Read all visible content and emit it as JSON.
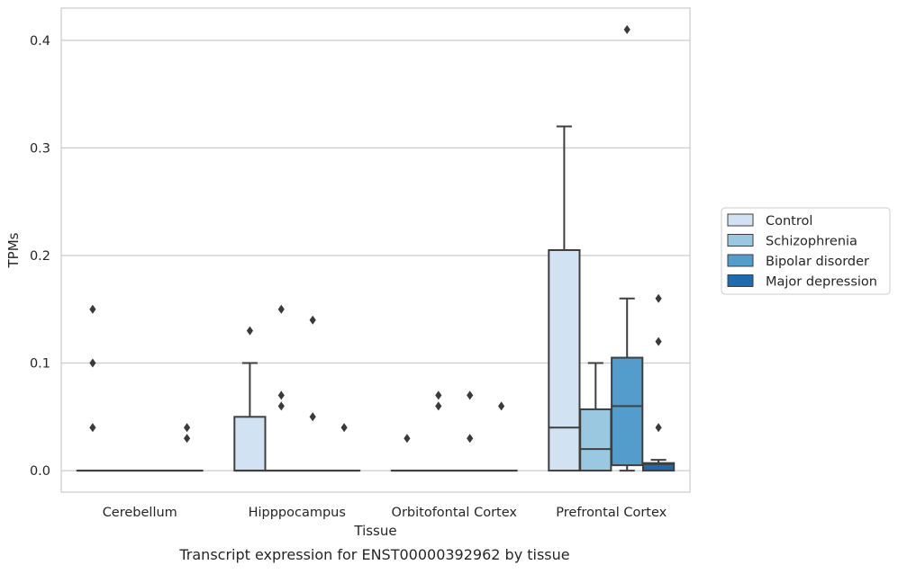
{
  "caption": "Transcript expression for ENST00000392962 by tissue",
  "chart_data": {
    "type": "boxplot",
    "xlabel": "Tissue",
    "ylabel": "TPMs",
    "ylim": [
      -0.02,
      0.43
    ],
    "yticks": [
      0.0,
      0.1,
      0.2,
      0.3,
      0.4
    ],
    "ytick_labels": [
      "0.0",
      "0.1",
      "0.2",
      "0.3",
      "0.4"
    ],
    "grid": "horizontal",
    "legend_position": "right",
    "categories": [
      "Cerebellum",
      "Hipppocampus",
      "Orbitofontal Cortex",
      "Prefrontal Cortex"
    ],
    "series": [
      {
        "name": "Control",
        "color": "#d1e2f2"
      },
      {
        "name": "Schizophrenia",
        "color": "#9ac8e0"
      },
      {
        "name": "Bipolar disorder",
        "color": "#529dcc"
      },
      {
        "name": "Major depression",
        "color": "#1c6aaf"
      }
    ],
    "boxes": [
      {
        "category": 0,
        "series": 0,
        "q1": 0,
        "median": 0,
        "q3": 0,
        "whisker_low": 0,
        "whisker_high": 0,
        "outliers": [
          0.04,
          0.1,
          0.15
        ]
      },
      {
        "category": 0,
        "series": 1,
        "q1": 0,
        "median": 0,
        "q3": 0,
        "whisker_low": 0,
        "whisker_high": 0,
        "outliers": []
      },
      {
        "category": 0,
        "series": 2,
        "q1": 0,
        "median": 0,
        "q3": 0,
        "whisker_low": 0,
        "whisker_high": 0,
        "outliers": []
      },
      {
        "category": 0,
        "series": 3,
        "q1": 0,
        "median": 0,
        "q3": 0,
        "whisker_low": 0,
        "whisker_high": 0,
        "outliers": [
          0.04,
          0.03
        ]
      },
      {
        "category": 1,
        "series": 0,
        "q1": 0,
        "median": 0,
        "q3": 0.05,
        "whisker_low": 0,
        "whisker_high": 0.1,
        "outliers": [
          0.13
        ]
      },
      {
        "category": 1,
        "series": 1,
        "q1": 0,
        "median": 0,
        "q3": 0,
        "whisker_low": 0,
        "whisker_high": 0,
        "outliers": [
          0.15,
          0.07,
          0.06
        ]
      },
      {
        "category": 1,
        "series": 2,
        "q1": 0,
        "median": 0,
        "q3": 0,
        "whisker_low": 0,
        "whisker_high": 0,
        "outliers": [
          0.14,
          0.05
        ]
      },
      {
        "category": 1,
        "series": 3,
        "q1": 0,
        "median": 0,
        "q3": 0,
        "whisker_low": 0,
        "whisker_high": 0,
        "outliers": [
          0.04
        ]
      },
      {
        "category": 2,
        "series": 0,
        "q1": 0,
        "median": 0,
        "q3": 0,
        "whisker_low": 0,
        "whisker_high": 0,
        "outliers": [
          0.03
        ]
      },
      {
        "category": 2,
        "series": 1,
        "q1": 0,
        "median": 0,
        "q3": 0,
        "whisker_low": 0,
        "whisker_high": 0,
        "outliers": [
          0.07,
          0.06
        ]
      },
      {
        "category": 2,
        "series": 2,
        "q1": 0,
        "median": 0,
        "q3": 0,
        "whisker_low": 0,
        "whisker_high": 0,
        "outliers": [
          0.07,
          0.03
        ]
      },
      {
        "category": 2,
        "series": 3,
        "q1": 0,
        "median": 0,
        "q3": 0,
        "whisker_low": 0,
        "whisker_high": 0,
        "outliers": [
          0.06
        ]
      },
      {
        "category": 3,
        "series": 0,
        "q1": 0,
        "median": 0.04,
        "q3": 0.205,
        "whisker_low": 0,
        "whisker_high": 0.32,
        "outliers": []
      },
      {
        "category": 3,
        "series": 1,
        "q1": 0,
        "median": 0.02,
        "q3": 0.057,
        "whisker_low": 0,
        "whisker_high": 0.1,
        "outliers": []
      },
      {
        "category": 3,
        "series": 2,
        "q1": 0.005,
        "median": 0.06,
        "q3": 0.105,
        "whisker_low": 0,
        "whisker_high": 0.16,
        "outliers": [
          0.41
        ]
      },
      {
        "category": 3,
        "series": 3,
        "q1": 0,
        "median": 0.006,
        "q3": 0.007,
        "whisker_low": 0,
        "whisker_high": 0.01,
        "outliers": [
          0.16,
          0.12,
          0.04
        ]
      }
    ]
  }
}
